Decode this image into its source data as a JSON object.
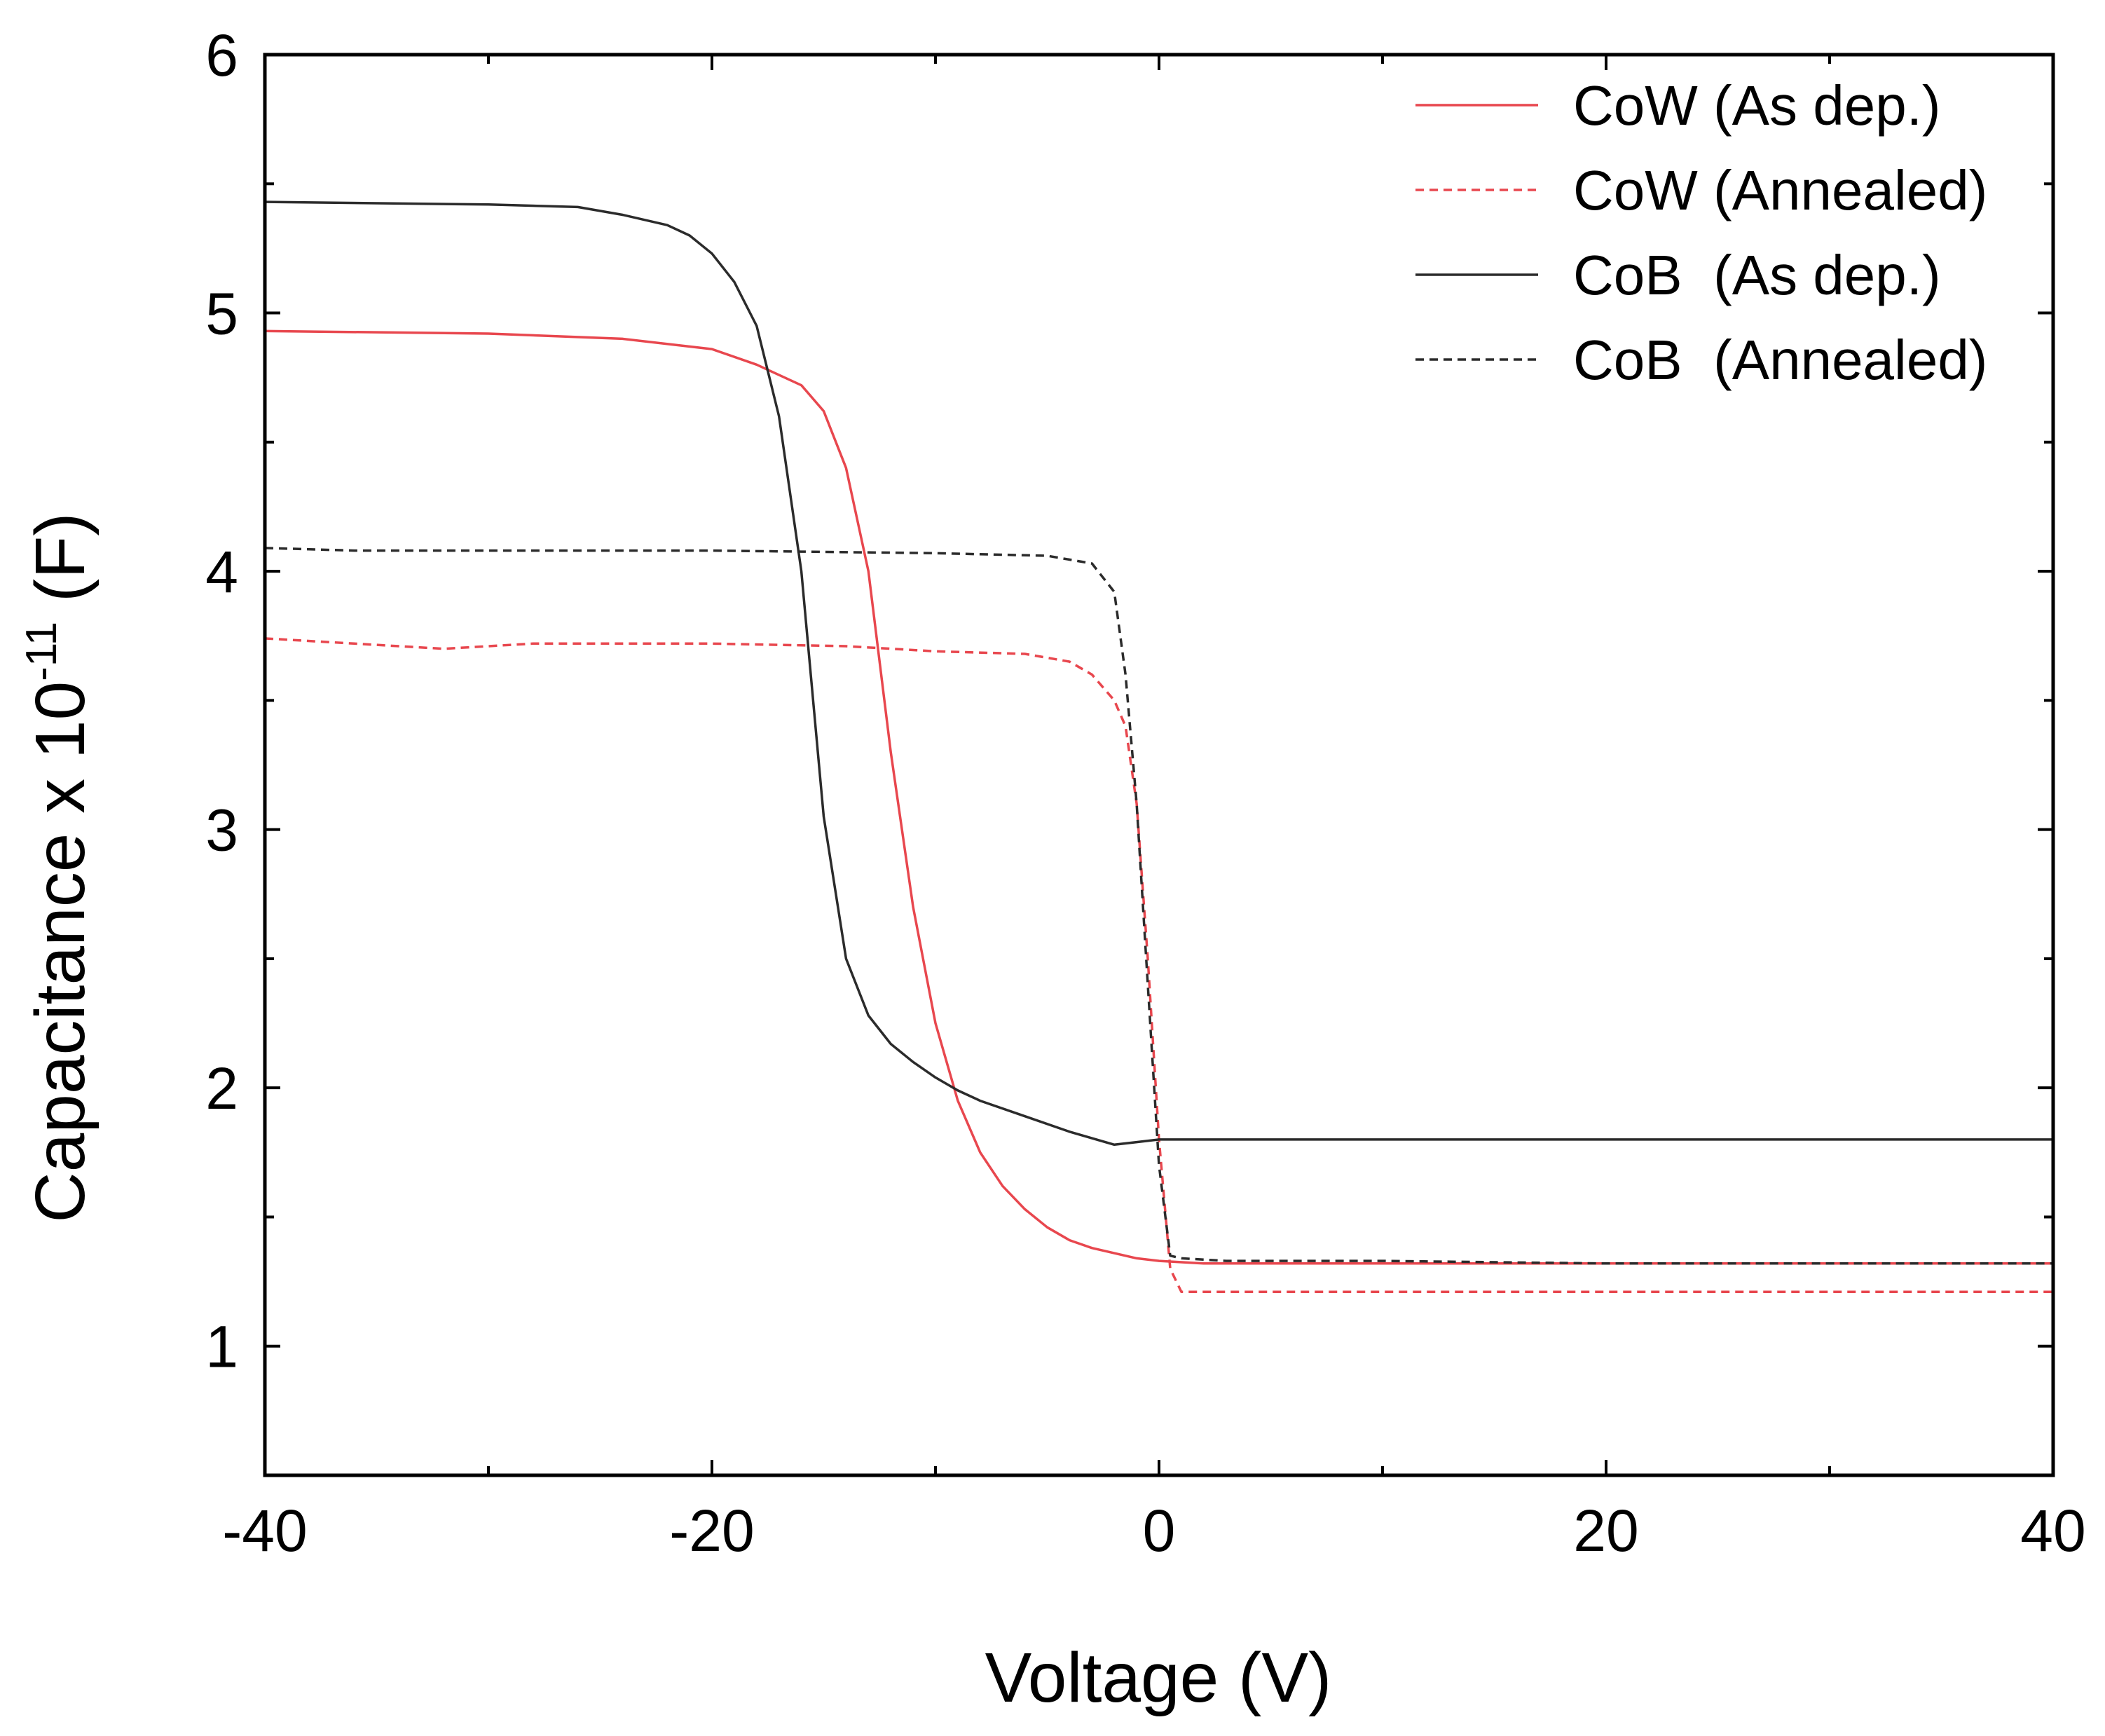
{
  "chart_data": {
    "type": "line",
    "title": "",
    "xlabel": "Voltage (V)",
    "ylabel_prefix": "Capacitance x 10",
    "ylabel_exponent": "-11",
    "ylabel_suffix": " (F)",
    "xlim": [
      -40,
      40
    ],
    "ylim": [
      0.5,
      6
    ],
    "xticks": [
      -40,
      -20,
      0,
      20,
      40
    ],
    "xtick_labels": [
      "-40",
      "-20",
      "0",
      "20",
      "40"
    ],
    "xminor": [
      -30,
      -10,
      10,
      30
    ],
    "yticks": [
      1,
      2,
      3,
      4,
      5,
      6
    ],
    "ytick_labels": [
      "1",
      "2",
      "3",
      "4",
      "5",
      "6"
    ],
    "yminor": [
      1.5,
      2.5,
      3.5,
      4.5,
      5.5
    ],
    "grid": false,
    "legend_position": "top-right",
    "series": [
      {
        "name": "CoW (As dep.)",
        "color": "#e8474e",
        "dash": "solid",
        "points": [
          [
            -40,
            4.93
          ],
          [
            -30,
            4.92
          ],
          [
            -24,
            4.9
          ],
          [
            -20,
            4.86
          ],
          [
            -18,
            4.8
          ],
          [
            -16,
            4.72
          ],
          [
            -15,
            4.62
          ],
          [
            -14,
            4.4
          ],
          [
            -13,
            4.0
          ],
          [
            -12,
            3.3
          ],
          [
            -11,
            2.7
          ],
          [
            -10,
            2.25
          ],
          [
            -9,
            1.95
          ],
          [
            -8,
            1.75
          ],
          [
            -7,
            1.62
          ],
          [
            -6,
            1.53
          ],
          [
            -5,
            1.46
          ],
          [
            -4,
            1.41
          ],
          [
            -3,
            1.38
          ],
          [
            -2,
            1.36
          ],
          [
            -1,
            1.34
          ],
          [
            0,
            1.33
          ],
          [
            2,
            1.32
          ],
          [
            10,
            1.32
          ],
          [
            20,
            1.32
          ],
          [
            40,
            1.32
          ]
        ]
      },
      {
        "name": "CoW (Annealed)",
        "color": "#e8474e",
        "dash": "dashed",
        "points": [
          [
            -40,
            3.74
          ],
          [
            -36,
            3.72
          ],
          [
            -32,
            3.7
          ],
          [
            -28,
            3.72
          ],
          [
            -20,
            3.72
          ],
          [
            -14,
            3.71
          ],
          [
            -10,
            3.69
          ],
          [
            -6,
            3.68
          ],
          [
            -4,
            3.65
          ],
          [
            -3,
            3.6
          ],
          [
            -2,
            3.5
          ],
          [
            -1.5,
            3.4
          ],
          [
            -1,
            3.1
          ],
          [
            -0.5,
            2.5
          ],
          [
            0,
            1.8
          ],
          [
            0.5,
            1.3
          ],
          [
            1,
            1.21
          ],
          [
            10,
            1.21
          ],
          [
            20,
            1.21
          ],
          [
            40,
            1.21
          ]
        ]
      },
      {
        "name": "CoB  (As dep.)",
        "color": "#2b2b2b",
        "dash": "solid",
        "points": [
          [
            -40,
            5.43
          ],
          [
            -30,
            5.42
          ],
          [
            -26,
            5.41
          ],
          [
            -24,
            5.38
          ],
          [
            -22,
            5.34
          ],
          [
            -21,
            5.3
          ],
          [
            -20,
            5.23
          ],
          [
            -19,
            5.12
          ],
          [
            -18,
            4.95
          ],
          [
            -17,
            4.6
          ],
          [
            -16,
            4.0
          ],
          [
            -15,
            3.05
          ],
          [
            -14,
            2.5
          ],
          [
            -13,
            2.28
          ],
          [
            -12,
            2.17
          ],
          [
            -11,
            2.1
          ],
          [
            -10,
            2.04
          ],
          [
            -9,
            1.99
          ],
          [
            -8,
            1.95
          ],
          [
            -6,
            1.89
          ],
          [
            -4,
            1.83
          ],
          [
            -2,
            1.78
          ],
          [
            -1,
            1.79
          ],
          [
            0,
            1.8
          ],
          [
            10,
            1.8
          ],
          [
            20,
            1.8
          ],
          [
            40,
            1.8
          ]
        ]
      },
      {
        "name": "CoB  (Annealed)",
        "color": "#2b2b2b",
        "dash": "dashed",
        "points": [
          [
            -40,
            4.09
          ],
          [
            -36,
            4.08
          ],
          [
            -30,
            4.08
          ],
          [
            -20,
            4.08
          ],
          [
            -10,
            4.07
          ],
          [
            -5,
            4.06
          ],
          [
            -3,
            4.03
          ],
          [
            -2,
            3.92
          ],
          [
            -1.5,
            3.6
          ],
          [
            -1,
            3.1
          ],
          [
            -0.5,
            2.4
          ],
          [
            0,
            1.7
          ],
          [
            0.5,
            1.35
          ],
          [
            1,
            1.34
          ],
          [
            3,
            1.33
          ],
          [
            10,
            1.33
          ],
          [
            20,
            1.32
          ],
          [
            40,
            1.32
          ]
        ]
      }
    ]
  }
}
